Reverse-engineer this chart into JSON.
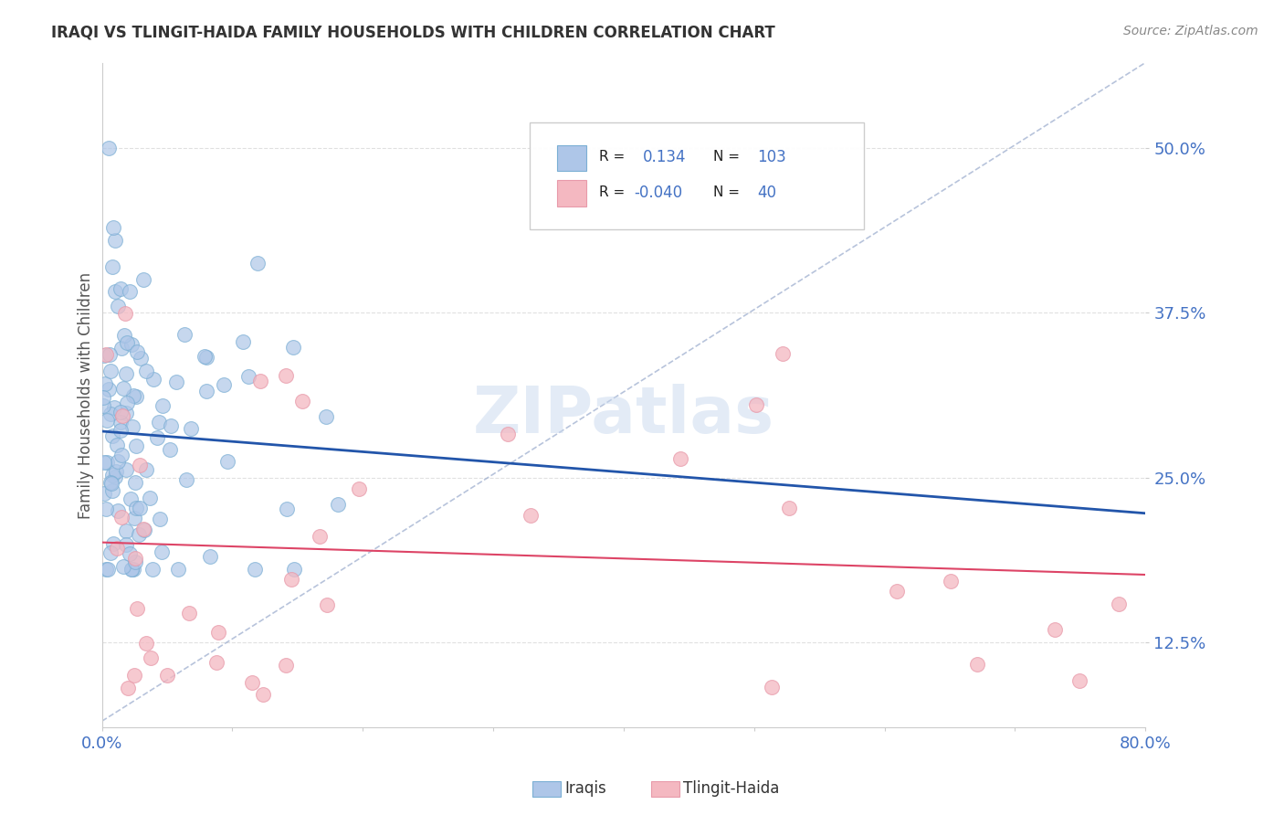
{
  "title": "IRAQI VS TLINGIT-HAIDA FAMILY HOUSEHOLDS WITH CHILDREN CORRELATION CHART",
  "source": "Source: ZipAtlas.com",
  "ylabel": "Family Households with Children",
  "xlim": [
    0.0,
    0.8
  ],
  "ylim": [
    0.06,
    0.565
  ],
  "ytick_vals": [
    0.125,
    0.25,
    0.375,
    0.5
  ],
  "ytick_labels": [
    "12.5%",
    "25.0%",
    "37.5%",
    "50.0%"
  ],
  "xtick_vals": [
    0.0,
    0.1,
    0.2,
    0.3,
    0.4,
    0.5,
    0.6,
    0.7,
    0.8
  ],
  "xtick_labels": [
    "0.0%",
    "",
    "",
    "",
    "",
    "",
    "",
    "",
    "80.0%"
  ],
  "legend_colors_fill": [
    "#aec6e8",
    "#f4b8c1"
  ],
  "legend_colors_edge": [
    "#7bafd4",
    "#e89aaa"
  ],
  "r_iraqis": 0.134,
  "n_iraqis": 103,
  "r_tlingit": -0.04,
  "n_tlingit": 40,
  "iraqis_fill": "#aec6e8",
  "iraqis_edge": "#7bafd4",
  "tlingit_fill": "#f4b8c1",
  "tlingit_edge": "#e89aaa",
  "iraqis_line_color": "#2255aa",
  "tlingit_line_color": "#dd4466",
  "dashed_line_color": "#99aacc",
  "background_color": "#ffffff",
  "grid_color": "#dddddd",
  "tick_label_color": "#4472c4",
  "watermark_color": "#c8d8ee",
  "title_color": "#333333",
  "source_color": "#888888",
  "ylabel_color": "#555555"
}
